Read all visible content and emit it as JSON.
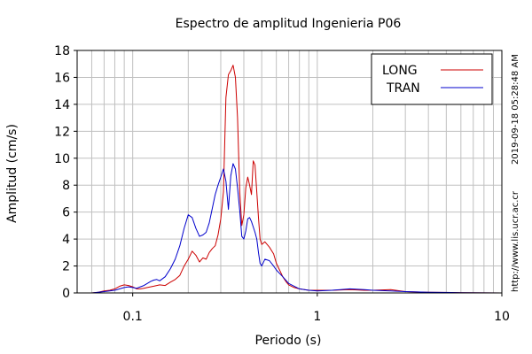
{
  "chart_data": {
    "type": "line",
    "title": "Espectro de amplitud Ingenieria P06",
    "xlabel": "Periodo (s)",
    "ylabel": "Amplitud (cm/s)",
    "x_scale": "log",
    "xlim": [
      0.05,
      10
    ],
    "ylim": [
      0,
      18
    ],
    "x_ticks": [
      0.1,
      1,
      10
    ],
    "x_tick_labels": [
      "0.1",
      "1",
      "10"
    ],
    "y_ticks": [
      0,
      2,
      4,
      6,
      8,
      10,
      12,
      14,
      16,
      18
    ],
    "y_tick_labels": [
      "0",
      "2",
      "4",
      "6",
      "8",
      "10",
      "12",
      "14",
      "16",
      "18"
    ],
    "grid": true,
    "legend_position": "top-right",
    "series": [
      {
        "name": "LONG",
        "color": "#cc0000",
        "x": [
          0.05,
          0.06,
          0.065,
          0.07,
          0.075,
          0.08,
          0.085,
          0.09,
          0.095,
          0.1,
          0.105,
          0.11,
          0.115,
          0.12,
          0.125,
          0.13,
          0.135,
          0.14,
          0.15,
          0.16,
          0.17,
          0.18,
          0.19,
          0.2,
          0.21,
          0.22,
          0.23,
          0.24,
          0.25,
          0.26,
          0.27,
          0.28,
          0.29,
          0.3,
          0.31,
          0.32,
          0.33,
          0.34,
          0.35,
          0.36,
          0.37,
          0.38,
          0.39,
          0.4,
          0.41,
          0.42,
          0.43,
          0.44,
          0.45,
          0.46,
          0.47,
          0.48,
          0.49,
          0.5,
          0.52,
          0.55,
          0.58,
          0.6,
          0.62,
          0.65,
          0.68,
          0.7,
          0.75,
          0.8,
          0.9,
          1.0,
          1.2,
          1.5,
          1.8,
          2.0,
          2.5,
          3.0,
          4.0,
          6.0,
          10.0
        ],
        "y": [
          0.0,
          0.0,
          0.05,
          0.15,
          0.2,
          0.3,
          0.5,
          0.6,
          0.55,
          0.45,
          0.3,
          0.3,
          0.35,
          0.4,
          0.45,
          0.5,
          0.55,
          0.6,
          0.55,
          0.8,
          1.0,
          1.3,
          2.0,
          2.5,
          3.1,
          2.8,
          2.3,
          2.6,
          2.5,
          3.0,
          3.3,
          3.5,
          4.3,
          5.5,
          7.5,
          14.5,
          16.2,
          16.5,
          16.9,
          16.0,
          13.0,
          7.5,
          5.0,
          5.8,
          7.8,
          8.6,
          8.0,
          7.3,
          9.8,
          9.5,
          7.5,
          5.6,
          4.0,
          3.6,
          3.8,
          3.4,
          2.9,
          2.2,
          1.8,
          1.2,
          0.8,
          0.6,
          0.4,
          0.3,
          0.2,
          0.2,
          0.2,
          0.25,
          0.2,
          0.2,
          0.25,
          0.1,
          0.05,
          0.02,
          0.0
        ]
      },
      {
        "name": "TRAN",
        "color": "#0000cc",
        "x": [
          0.05,
          0.06,
          0.065,
          0.07,
          0.075,
          0.08,
          0.085,
          0.09,
          0.095,
          0.1,
          0.105,
          0.11,
          0.115,
          0.12,
          0.125,
          0.13,
          0.135,
          0.14,
          0.15,
          0.16,
          0.17,
          0.18,
          0.19,
          0.2,
          0.21,
          0.22,
          0.23,
          0.24,
          0.25,
          0.26,
          0.27,
          0.28,
          0.29,
          0.3,
          0.31,
          0.32,
          0.33,
          0.34,
          0.35,
          0.36,
          0.37,
          0.38,
          0.39,
          0.4,
          0.41,
          0.42,
          0.43,
          0.44,
          0.45,
          0.46,
          0.47,
          0.48,
          0.49,
          0.5,
          0.52,
          0.55,
          0.58,
          0.6,
          0.62,
          0.65,
          0.68,
          0.7,
          0.75,
          0.8,
          0.9,
          1.0,
          1.2,
          1.5,
          1.8,
          2.0,
          2.5,
          3.0,
          4.0,
          6.0,
          10.0
        ],
        "y": [
          0.0,
          0.0,
          0.05,
          0.1,
          0.15,
          0.2,
          0.3,
          0.4,
          0.45,
          0.4,
          0.35,
          0.45,
          0.55,
          0.7,
          0.85,
          0.95,
          1.0,
          0.9,
          1.2,
          1.8,
          2.5,
          3.5,
          4.8,
          5.8,
          5.6,
          4.8,
          4.2,
          4.3,
          4.5,
          5.2,
          6.3,
          7.3,
          8.0,
          8.6,
          9.2,
          8.3,
          6.2,
          8.7,
          9.6,
          9.2,
          7.8,
          6.1,
          4.2,
          4.0,
          4.6,
          5.5,
          5.6,
          5.3,
          4.9,
          4.5,
          4.0,
          3.0,
          2.2,
          2.0,
          2.5,
          2.4,
          2.0,
          1.7,
          1.5,
          1.2,
          0.9,
          0.7,
          0.5,
          0.3,
          0.2,
          0.15,
          0.2,
          0.3,
          0.25,
          0.2,
          0.15,
          0.1,
          0.05,
          0.02,
          0.0
        ]
      }
    ]
  },
  "side_text": {
    "timestamp": "2019-09-18 05:28:48 AM",
    "url": "http://www.lis.ucr.ac.cr"
  }
}
